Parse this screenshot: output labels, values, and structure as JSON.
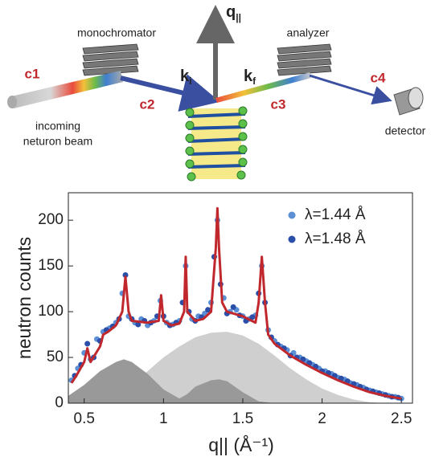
{
  "diagram": {
    "monochromator": "monochromator",
    "analyzer": "analyzer",
    "c1": "c1",
    "c2": "c2",
    "c3": "c3",
    "c4": "c4",
    "incoming": [
      "incoming",
      "neturon beam"
    ],
    "detector": "detector",
    "k_i": {
      "main": "k",
      "sub": "i"
    },
    "k_f": {
      "main": "k",
      "sub": "f"
    },
    "q": {
      "main": "q",
      "sub": "||"
    }
  },
  "chart_data": {
    "type": "scatter",
    "x_label": "q|| (Å⁻¹)",
    "y_label": "neutron counts",
    "xlim": [
      0.4,
      2.57
    ],
    "ylim": [
      0,
      230
    ],
    "xticks": [
      0.5,
      1,
      1.5,
      2,
      2.5
    ],
    "yticks": [
      0,
      50,
      100,
      150,
      200
    ],
    "legend": "upper right",
    "series": [
      {
        "type": "area",
        "color": "#cfcfcf",
        "x": [
          0.6,
          0.7,
          0.8,
          0.9,
          1.0,
          1.1,
          1.2,
          1.3,
          1.4,
          1.5,
          1.6,
          1.7,
          1.8,
          1.9,
          2.0,
          2.1,
          2.2,
          2.3,
          2.4
        ],
        "values": [
          0,
          8,
          20,
          35,
          50,
          62,
          72,
          77,
          78,
          74,
          65,
          52,
          38,
          26,
          16,
          9,
          4,
          1,
          0
        ]
      },
      {
        "type": "area",
        "color": "#999999",
        "x": [
          0.4,
          0.5,
          0.6,
          0.7,
          0.75,
          0.8,
          0.9,
          1.0,
          1.1,
          1.15,
          1.2,
          1.3,
          1.35,
          1.4,
          1.5,
          1.6,
          1.7
        ],
        "values": [
          8,
          20,
          35,
          45,
          48,
          45,
          32,
          15,
          5,
          10,
          18,
          25,
          26,
          24,
          12,
          2,
          0
        ]
      },
      {
        "type": "scatter",
        "name": "λ=1.44 Å",
        "color": "#5b8fd6",
        "x": [
          0.42,
          0.46,
          0.5,
          0.54,
          0.58,
          0.62,
          0.66,
          0.7,
          0.74,
          0.78,
          0.82,
          0.86,
          0.9,
          0.94,
          0.98,
          1.02,
          1.06,
          1.1,
          1.14,
          1.18,
          1.22,
          1.26,
          1.3,
          1.34,
          1.38,
          1.42,
          1.46,
          1.5,
          1.54,
          1.58,
          1.62,
          1.66,
          1.7,
          1.74,
          1.78,
          1.82,
          1.86,
          1.9,
          1.94,
          1.98,
          2.02,
          2.06,
          2.1,
          2.14,
          2.18,
          2.22,
          2.26,
          2.3,
          2.34,
          2.38,
          2.42,
          2.46,
          2.5
        ],
        "values": [
          25,
          38,
          55,
          48,
          70,
          78,
          82,
          88,
          120,
          95,
          88,
          92,
          85,
          90,
          112,
          88,
          86,
          90,
          150,
          92,
          95,
          98,
          110,
          200,
          115,
          100,
          102,
          95,
          92,
          96,
          150,
          80,
          68,
          62,
          58,
          55,
          50,
          46,
          42,
          38,
          35,
          32,
          28,
          26,
          22,
          20,
          17,
          14,
          12,
          10,
          8,
          7,
          5
        ]
      },
      {
        "type": "scatter",
        "name": "λ=1.48 Å",
        "color": "#2b4fa8",
        "x": [
          0.44,
          0.48,
          0.52,
          0.56,
          0.6,
          0.64,
          0.68,
          0.72,
          0.76,
          0.8,
          0.84,
          0.88,
          0.92,
          0.96,
          1.0,
          1.04,
          1.08,
          1.12,
          1.16,
          1.2,
          1.24,
          1.28,
          1.32,
          1.36,
          1.4,
          1.44,
          1.48,
          1.52,
          1.56,
          1.6,
          1.64,
          1.68,
          1.72,
          1.76,
          1.8,
          1.84,
          1.88,
          1.92,
          1.96,
          2.0,
          2.04,
          2.08,
          2.12,
          2.16,
          2.2,
          2.24,
          2.28,
          2.32,
          2.36,
          2.4,
          2.44,
          2.48
        ],
        "values": [
          30,
          42,
          65,
          50,
          68,
          80,
          84,
          92,
          140,
          92,
          86,
          90,
          88,
          95,
          95,
          85,
          88,
          110,
          100,
          90,
          94,
          102,
          160,
          130,
          98,
          105,
          96,
          90,
          94,
          120,
          110,
          72,
          64,
          60,
          52,
          50,
          48,
          44,
          40,
          35,
          33,
          30,
          27,
          24,
          21,
          18,
          15,
          13,
          11,
          9,
          7,
          6
        ]
      },
      {
        "type": "line",
        "color": "#c0282d",
        "x": [
          0.42,
          0.45,
          0.5,
          0.52,
          0.54,
          0.6,
          0.62,
          0.65,
          0.7,
          0.74,
          0.76,
          0.78,
          0.8,
          0.9,
          0.97,
          0.985,
          1.0,
          1.05,
          1.1,
          1.13,
          1.14,
          1.15,
          1.2,
          1.25,
          1.3,
          1.33,
          1.34,
          1.35,
          1.37,
          1.4,
          1.5,
          1.58,
          1.6,
          1.62,
          1.64,
          1.66,
          1.7,
          1.8,
          1.9,
          2.0,
          2.1,
          2.2,
          2.3,
          2.4,
          2.5
        ],
        "values": [
          22,
          30,
          45,
          60,
          45,
          62,
          75,
          78,
          85,
          100,
          138,
          100,
          90,
          88,
          90,
          118,
          90,
          85,
          87,
          100,
          160,
          100,
          90,
          92,
          100,
          170,
          213,
          170,
          110,
          100,
          95,
          88,
          110,
          160,
          110,
          75,
          65,
          52,
          42,
          33,
          25,
          18,
          12,
          8,
          5
        ]
      }
    ]
  }
}
